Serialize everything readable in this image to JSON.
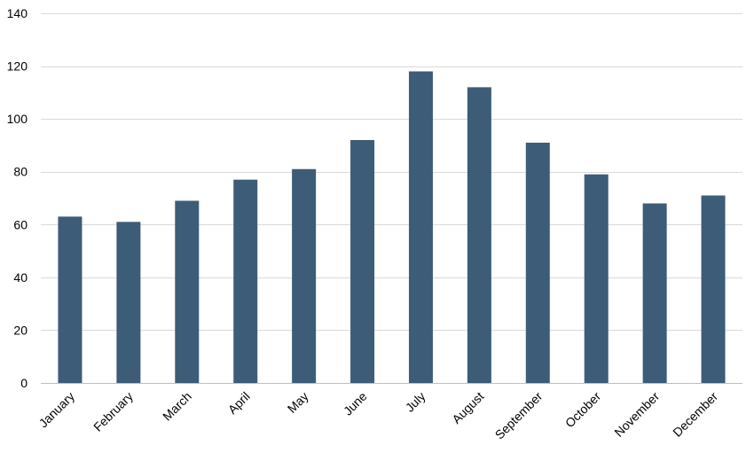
{
  "chart_data": {
    "type": "bar",
    "categories": [
      "January",
      "February",
      "March",
      "April",
      "May",
      "June",
      "July",
      "August",
      "September",
      "October",
      "November",
      "December"
    ],
    "values": [
      63,
      61,
      69,
      77,
      81,
      92,
      118,
      112,
      91,
      79,
      68,
      71
    ],
    "title": "",
    "xlabel": "",
    "ylabel": "",
    "ylim": [
      0,
      140
    ],
    "yticks": [
      0,
      20,
      40,
      60,
      80,
      100,
      120,
      140
    ],
    "grid": true,
    "legend": "none",
    "colors": {
      "bar": "#3d5c78",
      "grid": "#d9d9d9"
    }
  }
}
